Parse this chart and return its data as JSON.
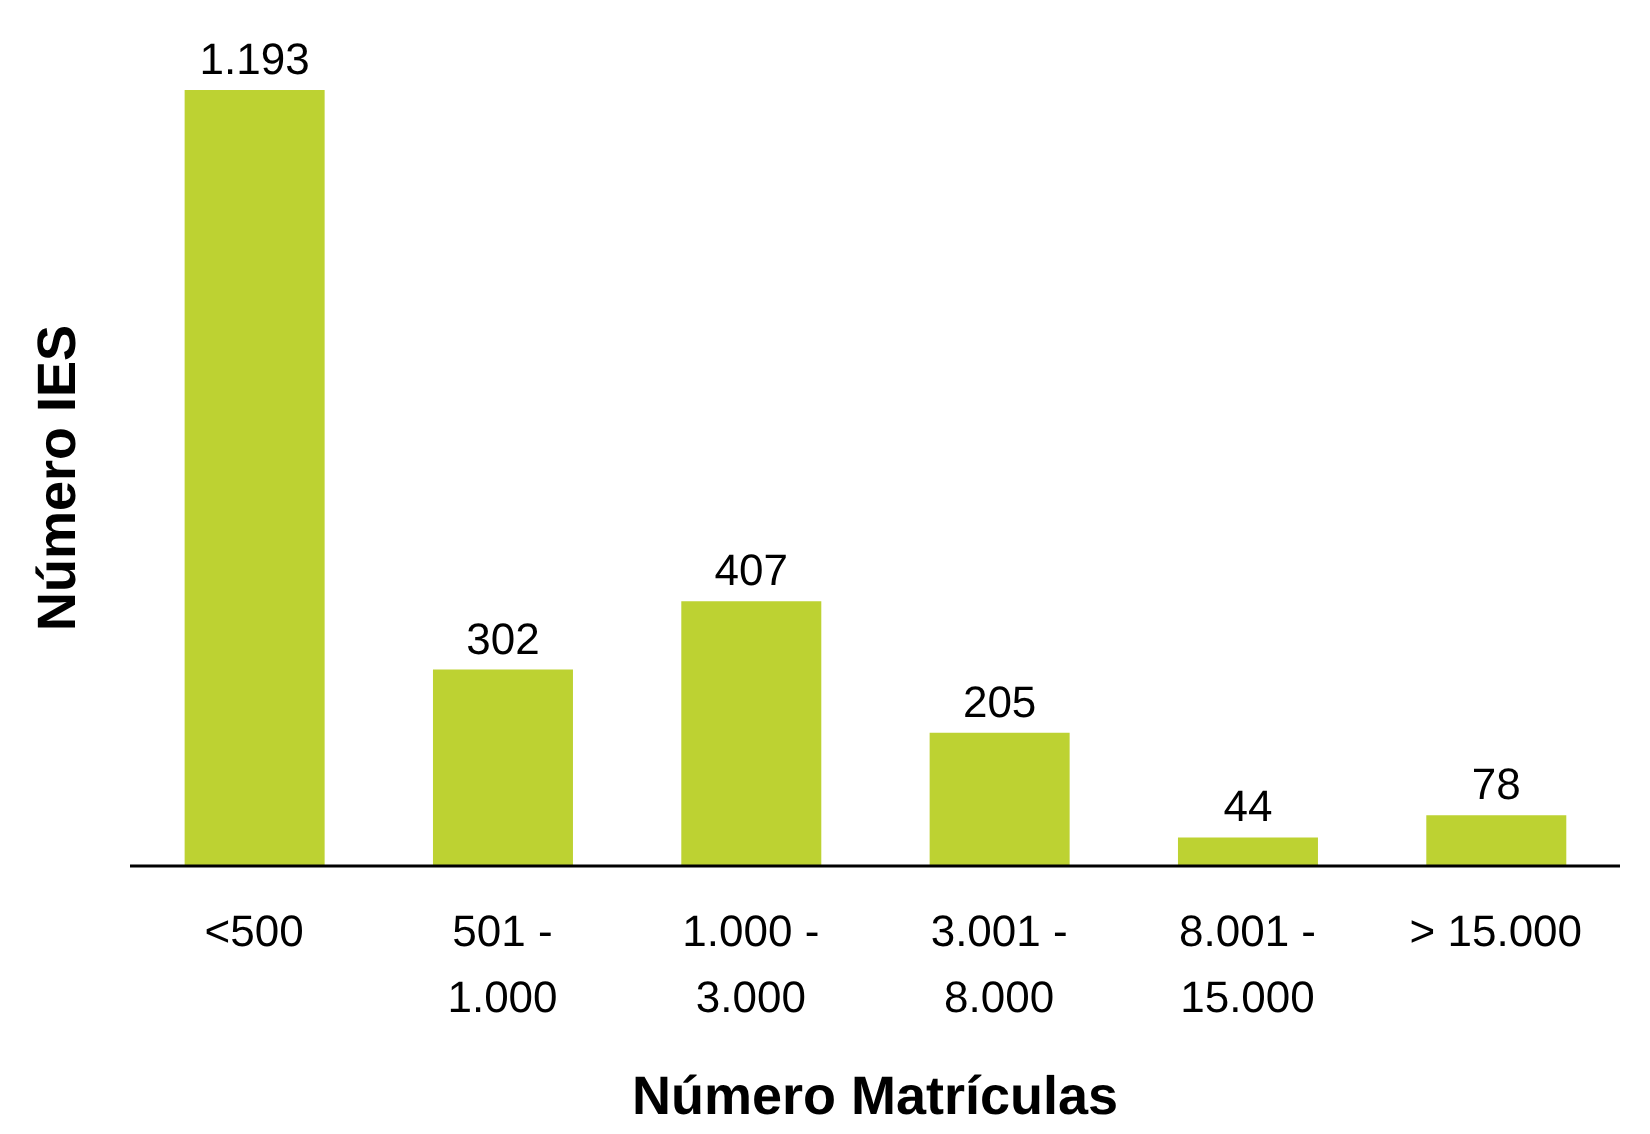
{
  "chart_data": {
    "type": "bar",
    "xlabel": "Número Matrículas",
    "ylabel": "Número IES",
    "categories": [
      "<500",
      "501 - 1.000",
      "1.000 - 3.000",
      "3.001 - 8.000",
      "8.001 - 15.000",
      "> 15.000"
    ],
    "values": [
      1193,
      302,
      407,
      205,
      44,
      78
    ],
    "value_labels": [
      "1.193",
      "302",
      "407",
      "205",
      "44",
      "78"
    ],
    "color": "#bdd232",
    "grid": false,
    "legend": false
  }
}
